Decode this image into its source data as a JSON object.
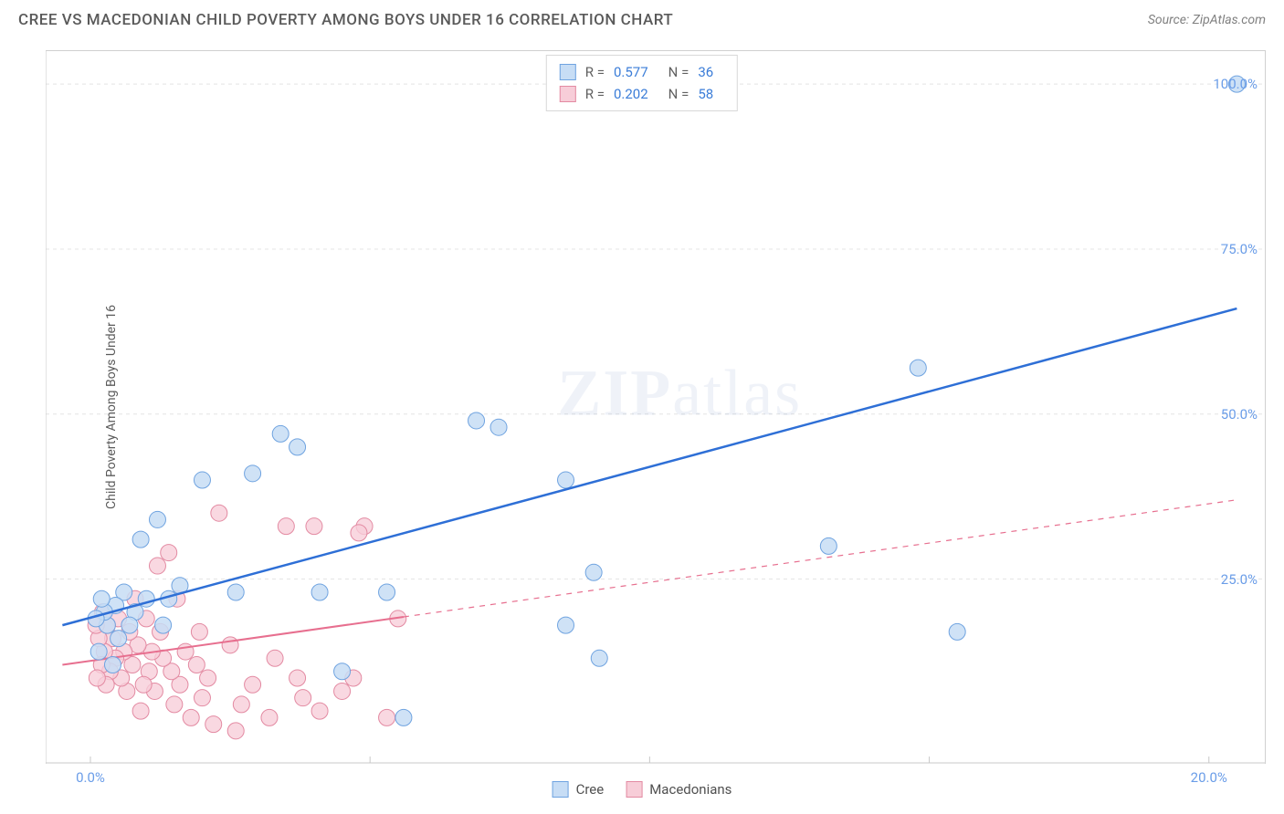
{
  "header": {
    "title": "CREE VS MACEDONIAN CHILD POVERTY AMONG BOYS UNDER 16 CORRELATION CHART",
    "source_prefix": "Source: ",
    "source_name": "ZipAtlas.com"
  },
  "axes": {
    "y_label": "Child Poverty Among Boys Under 16",
    "xlim": [
      -0.8,
      21
    ],
    "ylim": [
      -3,
      105
    ],
    "y_ticks": [
      25,
      50,
      75,
      100
    ],
    "y_tick_labels": [
      "25.0%",
      "50.0%",
      "75.0%",
      "100.0%"
    ],
    "x_ticks": [
      0,
      5,
      10,
      15,
      20
    ],
    "x_tick_first_label": "0.0%",
    "x_tick_last_label": "20.0%",
    "grid_color": "#e4e4e4",
    "grid_dash": "4 4",
    "axis_line_color": "#c8c8c8",
    "tick_label_color": "#6a9de8"
  },
  "watermark": {
    "zip": "ZIP",
    "atlas": "atlas"
  },
  "series": {
    "cree": {
      "label": "Cree",
      "marker_fill": "#c7ddf5",
      "marker_stroke": "#6fa3e0",
      "marker_opacity": 0.85,
      "marker_radius": 9,
      "line_color": "#2e6fd6",
      "line_width": 2.5,
      "line_solid_xmax": 20.5,
      "trend": {
        "x1": -0.5,
        "y1": 18,
        "x2": 20.5,
        "y2": 66
      },
      "R": "0.577",
      "N": "36",
      "points": [
        [
          20.5,
          100
        ],
        [
          15.5,
          17
        ],
        [
          13.2,
          30
        ],
        [
          14.8,
          57
        ],
        [
          8.5,
          40
        ],
        [
          9.0,
          26
        ],
        [
          8.5,
          18
        ],
        [
          9.1,
          13
        ],
        [
          6.9,
          49
        ],
        [
          7.3,
          48
        ],
        [
          5.6,
          4
        ],
        [
          5.3,
          23
        ],
        [
          4.5,
          11
        ],
        [
          4.1,
          23
        ],
        [
          3.7,
          45
        ],
        [
          3.4,
          47
        ],
        [
          2.9,
          41
        ],
        [
          2.6,
          23
        ],
        [
          2.0,
          40
        ],
        [
          1.6,
          24
        ],
        [
          1.4,
          22
        ],
        [
          1.3,
          18
        ],
        [
          1.2,
          34
        ],
        [
          1.0,
          22
        ],
        [
          0.9,
          31
        ],
        [
          0.8,
          20
        ],
        [
          0.7,
          18
        ],
        [
          0.6,
          23
        ],
        [
          0.5,
          16
        ],
        [
          0.45,
          21
        ],
        [
          0.4,
          12
        ],
        [
          0.3,
          18
        ],
        [
          0.25,
          20
        ],
        [
          0.2,
          22
        ],
        [
          0.15,
          14
        ],
        [
          0.1,
          19
        ]
      ]
    },
    "macedonians": {
      "label": "Macedonians",
      "marker_fill": "#f7cdd8",
      "marker_stroke": "#e38aa2",
      "marker_opacity": 0.78,
      "marker_radius": 9,
      "line_color": "#e76f8f",
      "line_width": 2,
      "line_solid_xmax": 5.6,
      "trend": {
        "x1": -0.5,
        "y1": 12,
        "x2": 20.5,
        "y2": 37
      },
      "R": "0.202",
      "N": "58",
      "points": [
        [
          5.5,
          19
        ],
        [
          5.3,
          4
        ],
        [
          4.9,
          33
        ],
        [
          4.8,
          32
        ],
        [
          4.7,
          10
        ],
        [
          4.5,
          8
        ],
        [
          4.0,
          33
        ],
        [
          4.1,
          5
        ],
        [
          3.8,
          7
        ],
        [
          3.7,
          10
        ],
        [
          3.5,
          33
        ],
        [
          3.3,
          13
        ],
        [
          3.2,
          4
        ],
        [
          2.9,
          9
        ],
        [
          2.7,
          6
        ],
        [
          2.6,
          2
        ],
        [
          2.5,
          15
        ],
        [
          2.3,
          35
        ],
        [
          2.2,
          3
        ],
        [
          2.1,
          10
        ],
        [
          2.0,
          7
        ],
        [
          1.95,
          17
        ],
        [
          1.9,
          12
        ],
        [
          1.8,
          4
        ],
        [
          1.7,
          14
        ],
        [
          1.6,
          9
        ],
        [
          1.55,
          22
        ],
        [
          1.5,
          6
        ],
        [
          1.45,
          11
        ],
        [
          1.4,
          29
        ],
        [
          1.3,
          13
        ],
        [
          1.25,
          17
        ],
        [
          1.2,
          27
        ],
        [
          1.15,
          8
        ],
        [
          1.1,
          14
        ],
        [
          1.05,
          11
        ],
        [
          1.0,
          19
        ],
        [
          0.95,
          9
        ],
        [
          0.9,
          5
        ],
        [
          0.85,
          15
        ],
        [
          0.8,
          22
        ],
        [
          0.75,
          12
        ],
        [
          0.7,
          17
        ],
        [
          0.65,
          8
        ],
        [
          0.6,
          14
        ],
        [
          0.55,
          10
        ],
        [
          0.5,
          19
        ],
        [
          0.45,
          13
        ],
        [
          0.4,
          16
        ],
        [
          0.35,
          11
        ],
        [
          0.3,
          18
        ],
        [
          0.28,
          9
        ],
        [
          0.25,
          14
        ],
        [
          0.22,
          20
        ],
        [
          0.2,
          12
        ],
        [
          0.15,
          16
        ],
        [
          0.12,
          10
        ],
        [
          0.1,
          18
        ]
      ]
    }
  },
  "legend_rn": {
    "r_label": "R =",
    "n_label": "N ="
  }
}
